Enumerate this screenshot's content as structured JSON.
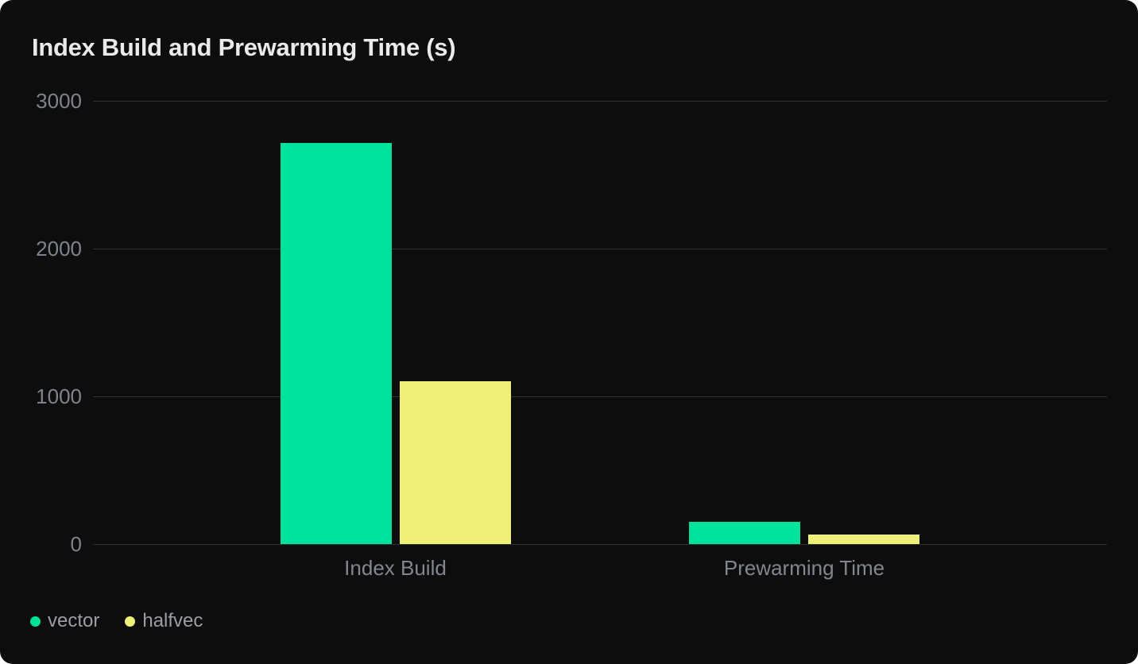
{
  "page": {
    "background_color": "#ffffff",
    "card_color": "#0d0d0e"
  },
  "chart": {
    "title": "Index Build and Prewarming Time (s)"
  },
  "chart_data": {
    "type": "bar",
    "title": "Index Build and Prewarming Time (s)",
    "categories": [
      "Index Build",
      "Prewarming Time"
    ],
    "series": [
      {
        "name": "vector",
        "color": "#00e29b",
        "values": [
          2715,
          150
        ]
      },
      {
        "name": "halfvec",
        "color": "#eef078",
        "values": [
          1100,
          65
        ]
      }
    ],
    "ylabel": "",
    "xlabel": "",
    "unit": "s",
    "ylim": [
      0,
      3000
    ],
    "yticks": [
      3000,
      2000,
      1000,
      0
    ],
    "grid": true,
    "legend_position": "bottom-left",
    "colors": {
      "gridline": "#2e3134",
      "axis_text": "#7f838a",
      "category_text": "#82868e",
      "legend_text": "#9b9ea4",
      "title_text": "#e9eaea"
    }
  }
}
